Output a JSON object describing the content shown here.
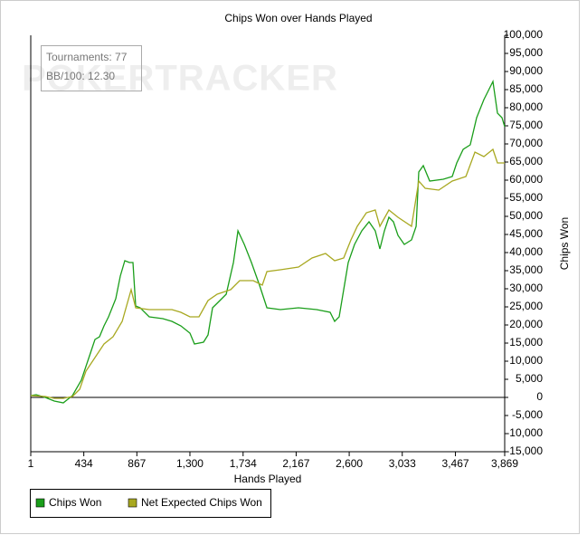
{
  "chart_data": {
    "type": "line",
    "title": "Chips Won over Hands Played",
    "xlabel": "Hands Played",
    "ylabel": "Chips Won",
    "info": [
      "Tournaments: 77",
      "BB/100: 12.30"
    ],
    "watermark": "POKERTRACKER",
    "xlim": [
      1,
      3869
    ],
    "xticks": [
      1,
      434,
      867,
      {
        "value": 1300,
        "label": "1,300"
      },
      {
        "value": 1734,
        "label": "1,734"
      },
      {
        "value": 2167,
        "label": "2,167"
      },
      {
        "value": 2600,
        "label": "2,600"
      },
      {
        "value": 3033,
        "label": "3,033"
      },
      {
        "value": 3467,
        "label": "3,467"
      },
      {
        "value": 3869,
        "label": "3,869"
      }
    ],
    "ylim": [
      -15000,
      100000
    ],
    "yticks": [
      {
        "value": -15000,
        "label": "-15,000"
      },
      {
        "value": -10000,
        "label": "-10,000"
      },
      {
        "value": -5000,
        "label": "-5,000"
      },
      0,
      {
        "value": 5000,
        "label": "5,000"
      },
      {
        "value": 10000,
        "label": "10,000"
      },
      {
        "value": 15000,
        "label": "15,000"
      },
      {
        "value": 20000,
        "label": "20,000"
      },
      {
        "value": 25000,
        "label": "25,000"
      },
      {
        "value": 30000,
        "label": "30,000"
      },
      {
        "value": 35000,
        "label": "35,000"
      },
      {
        "value": 40000,
        "label": "40,000"
      },
      {
        "value": 45000,
        "label": "45,000"
      },
      {
        "value": 50000,
        "label": "50,000"
      },
      {
        "value": 55000,
        "label": "55,000"
      },
      {
        "value": 60000,
        "label": "60,000"
      },
      {
        "value": 65000,
        "label": "65,000"
      },
      {
        "value": 70000,
        "label": "70,000"
      },
      {
        "value": 75000,
        "label": "75,000"
      },
      {
        "value": 80000,
        "label": "80,000"
      },
      {
        "value": 85000,
        "label": "85,000"
      },
      {
        "value": 90000,
        "label": "90,000"
      },
      {
        "value": 95000,
        "label": "95,000"
      },
      {
        "value": 100000,
        "label": "100,000"
      }
    ],
    "grid": false,
    "series": [
      {
        "name": "Chips Won",
        "color": "#1a9e1a",
        "x": [
          1,
          45,
          119,
          193,
          267,
          341,
          414,
          488,
          525,
          562,
          599,
          636,
          695,
          732,
          769,
          806,
          835,
          857,
          894,
          968,
          1079,
          1153,
          1226,
          1300,
          1337,
          1411,
          1448,
          1485,
          1522,
          1596,
          1655,
          1692,
          1744,
          1802,
          1868,
          1928,
          2038,
          2186,
          2334,
          2444,
          2481,
          2518,
          2555,
          2592,
          2644,
          2703,
          2762,
          2813,
          2850,
          2887,
          2924,
          2961,
          2998,
          3050,
          3109,
          3146,
          3168,
          3205,
          3257,
          3368,
          3441,
          3478,
          3530,
          3588,
          3640,
          3699,
          3736,
          3773,
          3810,
          3847,
          3869
        ],
        "values": [
          500,
          750,
          0,
          -1000,
          -1500,
          500,
          4750,
          12250,
          16000,
          16750,
          19750,
          22250,
          27250,
          33500,
          37750,
          37250,
          37250,
          25250,
          24750,
          22250,
          21750,
          21000,
          19750,
          17750,
          14750,
          15250,
          17250,
          24750,
          26000,
          28500,
          37250,
          46000,
          42250,
          37250,
          31000,
          24750,
          24250,
          24750,
          24250,
          23500,
          21000,
          22250,
          29750,
          37250,
          42250,
          46000,
          48500,
          46000,
          41000,
          46000,
          49750,
          48500,
          44750,
          42250,
          43500,
          47250,
          62250,
          64000,
          59750,
          60250,
          61000,
          64750,
          68500,
          69750,
          77250,
          82250,
          84750,
          87250,
          78500,
          77250,
          74750
        ]
      },
      {
        "name": "Net Expected Chips Won",
        "color": "#a8a820",
        "x": [
          1,
          119,
          193,
          267,
          341,
          400,
          451,
          525,
          599,
          673,
          747,
          820,
          857,
          968,
          1153,
          1226,
          1300,
          1374,
          1448,
          1522,
          1632,
          1706,
          1817,
          1891,
          1928,
          2038,
          2186,
          2297,
          2407,
          2481,
          2555,
          2614,
          2666,
          2740,
          2813,
          2850,
          2924,
          2998,
          3109,
          3168,
          3220,
          3331,
          3441,
          3552,
          3626,
          3699,
          3773,
          3810,
          3869
        ],
        "values": [
          500,
          250,
          -250,
          -250,
          250,
          2250,
          7250,
          11000,
          14750,
          16750,
          21000,
          29750,
          24750,
          24250,
          24250,
          23500,
          22250,
          22250,
          26750,
          28500,
          29750,
          32250,
          32250,
          31000,
          34750,
          35250,
          36000,
          38500,
          39750,
          37750,
          38500,
          43500,
          47250,
          51000,
          51750,
          47250,
          51750,
          49750,
          47250,
          59750,
          57750,
          57250,
          59750,
          61000,
          67750,
          66500,
          68500,
          64750,
          64750
        ]
      }
    ]
  }
}
